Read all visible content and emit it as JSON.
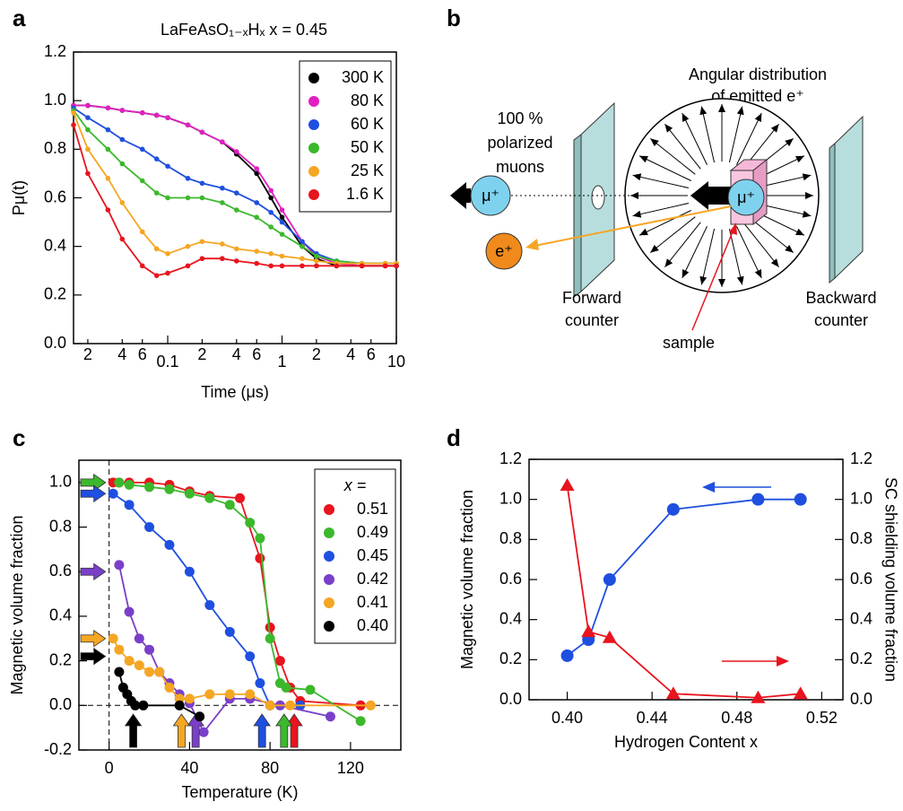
{
  "panel_labels": [
    "a",
    "b",
    "c",
    "d"
  ],
  "diagram": {
    "angular_label": [
      "Angular distribution",
      "of emitted e⁺"
    ],
    "muon_label": [
      "100 %",
      "polarized",
      "muons"
    ],
    "forward_label": [
      "Forward",
      "counter"
    ],
    "backward_label": [
      "Backward",
      "counter"
    ],
    "sample_label": "sample",
    "muon_symbol": "μ⁺",
    "sample_muon_symbol": "μ⁺",
    "positron_symbol": "e⁺"
  },
  "chart_data": [
    {
      "type": "line",
      "title": "LaFeAsO₁₋ₓHₓ x = 0.45",
      "xlabel": "Time (μs)",
      "ylabel": "Pμ(t)",
      "xscale": "log",
      "xlim": [
        0.015,
        10
      ],
      "ylim": [
        0,
        1.2
      ],
      "xticks": [
        {
          "value": 0.02,
          "label": "2"
        },
        {
          "value": 0.04,
          "label": "4"
        },
        {
          "value": 0.06,
          "label": "6"
        },
        0.1,
        {
          "value": 0.2,
          "label": "2"
        },
        {
          "value": 0.4,
          "label": "4"
        },
        {
          "value": 0.6,
          "label": "6"
        },
        1,
        {
          "value": 2,
          "label": "2"
        },
        {
          "value": 4,
          "label": "4"
        },
        {
          "value": 6,
          "label": "6"
        },
        10
      ],
      "yticks": [
        {
          "value": 0,
          "label": "0.0"
        },
        0.2,
        0.4,
        0.6,
        0.8,
        {
          "value": 1,
          "label": "1.0"
        },
        1.2
      ],
      "legend": "upper right",
      "x": [
        0.015,
        0.02,
        0.03,
        0.04,
        0.06,
        0.08,
        0.1,
        0.15,
        0.2,
        0.3,
        0.4,
        0.6,
        0.8,
        1,
        1.5,
        2,
        3,
        5,
        8,
        10
      ],
      "series": [
        {
          "name": "300 K",
          "color": "#000000",
          "values": [
            0.98,
            0.98,
            0.97,
            0.96,
            0.95,
            0.94,
            0.93,
            0.9,
            0.87,
            0.83,
            0.78,
            0.7,
            0.6,
            0.52,
            0.4,
            0.35,
            0.32,
            0.32,
            0.32,
            0.32
          ]
        },
        {
          "name": "80 K",
          "color": "#e020c0",
          "values": [
            0.98,
            0.98,
            0.97,
            0.96,
            0.95,
            0.94,
            0.93,
            0.9,
            0.87,
            0.83,
            0.79,
            0.72,
            0.63,
            0.55,
            0.42,
            0.36,
            0.33,
            0.32,
            0.32,
            0.32
          ]
        },
        {
          "name": "60 K",
          "color": "#1f4fe0",
          "values": [
            0.97,
            0.93,
            0.88,
            0.84,
            0.8,
            0.76,
            0.73,
            0.68,
            0.66,
            0.64,
            0.62,
            0.58,
            0.54,
            0.5,
            0.42,
            0.37,
            0.34,
            0.33,
            0.33,
            0.33
          ]
        },
        {
          "name": "50 K",
          "color": "#3cb82c",
          "values": [
            0.96,
            0.88,
            0.8,
            0.74,
            0.67,
            0.62,
            0.6,
            0.6,
            0.6,
            0.58,
            0.55,
            0.52,
            0.48,
            0.45,
            0.4,
            0.36,
            0.34,
            0.33,
            0.33,
            0.33
          ]
        },
        {
          "name": "25 K",
          "color": "#f5a623",
          "values": [
            0.95,
            0.8,
            0.68,
            0.58,
            0.46,
            0.39,
            0.37,
            0.4,
            0.42,
            0.41,
            0.39,
            0.38,
            0.37,
            0.36,
            0.35,
            0.34,
            0.33,
            0.33,
            0.33,
            0.33
          ]
        },
        {
          "name": "1.6 K",
          "color": "#e8141e",
          "values": [
            0.9,
            0.7,
            0.55,
            0.43,
            0.32,
            0.28,
            0.29,
            0.32,
            0.35,
            0.35,
            0.34,
            0.33,
            0.32,
            0.32,
            0.32,
            0.32,
            0.32,
            0.32,
            0.32,
            0.32
          ]
        }
      ]
    },
    {
      "type": "scatter",
      "xlabel": "Temperature (K)",
      "ylabel": "Magnetic volume fraction",
      "xlim": [
        -15,
        145
      ],
      "ylim": [
        -0.2,
        1.1
      ],
      "lines": true,
      "zero_lines": true,
      "xticks": [
        0,
        40,
        80,
        120
      ],
      "yticks": [
        -0.2,
        {
          "value": 0,
          "label": "0.0"
        },
        0.2,
        0.4,
        0.6,
        0.8,
        {
          "value": 1,
          "label": "1.0"
        }
      ],
      "legend": "upper right",
      "legend_title": "x =",
      "series": [
        {
          "name": "0.51",
          "color": "#e8141e",
          "arrow_x": 92,
          "arrow_y": 1.0,
          "x": [
            2,
            5,
            10,
            20,
            30,
            40,
            50,
            65,
            75,
            80,
            85,
            90,
            95,
            125
          ],
          "values": [
            1.0,
            1.0,
            1.0,
            1.0,
            0.99,
            0.96,
            0.94,
            0.93,
            0.66,
            0.35,
            0.2,
            0.08,
            0.02,
            0.0
          ]
        },
        {
          "name": "0.49",
          "color": "#3cb82c",
          "arrow_x": 87,
          "arrow_y": 1.0,
          "x": [
            5,
            10,
            20,
            30,
            40,
            50,
            60,
            70,
            75,
            80,
            85,
            88,
            100,
            125
          ],
          "values": [
            1.0,
            0.99,
            0.98,
            0.97,
            0.95,
            0.93,
            0.9,
            0.82,
            0.75,
            0.3,
            0.1,
            0.08,
            0.07,
            -0.07
          ]
        },
        {
          "name": "0.45",
          "color": "#1f4fe0",
          "arrow_x": 76,
          "arrow_y": 0.95,
          "x": [
            2,
            10,
            20,
            30,
            40,
            50,
            60,
            70,
            75,
            80,
            95
          ],
          "values": [
            0.95,
            0.9,
            0.8,
            0.72,
            0.6,
            0.45,
            0.33,
            0.22,
            0.1,
            0.0,
            0.0
          ]
        },
        {
          "name": "0.42",
          "color": "#7a3fc8",
          "arrow_x": 43,
          "arrow_y": 0.6,
          "x": [
            5,
            10,
            15,
            20,
            25,
            30,
            35,
            40,
            47,
            60,
            70,
            85,
            110
          ],
          "values": [
            0.63,
            0.42,
            0.3,
            0.25,
            0.15,
            0.1,
            0.05,
            0.01,
            -0.12,
            0.03,
            0.03,
            0.0,
            -0.05
          ]
        },
        {
          "name": "0.41",
          "color": "#f5a623",
          "arrow_x": 36,
          "arrow_y": 0.3,
          "x": [
            2,
            5,
            10,
            15,
            20,
            25,
            30,
            35,
            40,
            50,
            60,
            70,
            80,
            90,
            130
          ],
          "values": [
            0.3,
            0.25,
            0.2,
            0.18,
            0.15,
            0.15,
            0.08,
            0.03,
            0.03,
            0.05,
            0.05,
            0.05,
            0.0,
            0.0,
            0.0
          ]
        },
        {
          "name": "0.40",
          "color": "#000000",
          "arrow_x": 12,
          "arrow_y": 0.22,
          "x": [
            5,
            7,
            9,
            11,
            13,
            17,
            35,
            45
          ],
          "values": [
            0.15,
            0.08,
            0.05,
            0.02,
            0.0,
            0.0,
            0.0,
            -0.05
          ]
        }
      ]
    },
    {
      "type": "scatter",
      "xlabel": "Hydrogen Content x",
      "ylabel": "Magnetic volume fraction",
      "y2label": "SC shielding volume fraction",
      "xlim": [
        0.382,
        0.53
      ],
      "ylim": [
        0,
        1.2
      ],
      "y2lim": [
        0,
        1.2
      ],
      "lines": true,
      "xticks": [
        {
          "value": 0.4,
          "label": "0.40"
        },
        0.44,
        0.48,
        0.52
      ],
      "yticks": [
        {
          "value": 0,
          "label": "0.0"
        },
        0.2,
        0.4,
        0.6,
        0.8,
        {
          "value": 1,
          "label": "1.0"
        },
        1.2
      ],
      "y2ticks": [
        {
          "value": 0,
          "label": "0.0"
        },
        0.2,
        0.4,
        0.6,
        0.8,
        {
          "value": 1,
          "label": "1.0"
        },
        1.2
      ],
      "x": [
        0.4,
        0.41,
        0.42,
        0.45,
        0.49,
        0.51
      ],
      "series": [
        {
          "color": "#1f4fe0",
          "marker": "circle",
          "values": [
            0.22,
            0.3,
            0.6,
            0.95,
            1.0,
            1.0
          ]
        },
        {
          "color": "#e8141e",
          "marker": "triangle",
          "axis": "y2",
          "values": [
            1.07,
            0.34,
            0.31,
            0.03,
            0.01,
            0.03
          ]
        }
      ]
    }
  ]
}
